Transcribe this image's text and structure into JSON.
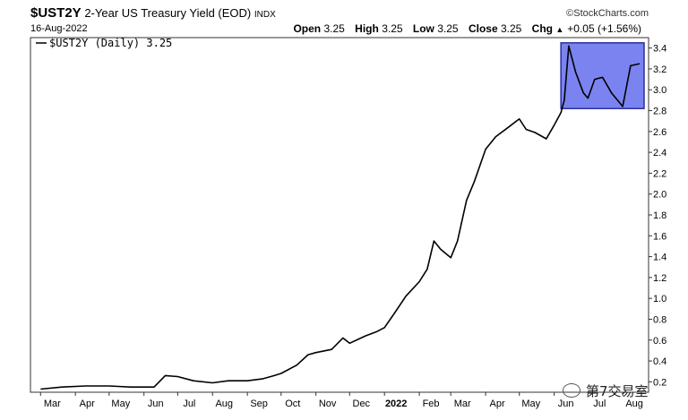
{
  "header": {
    "symbol": "$UST2Y",
    "description": "2-Year US Treasury Yield (EOD)",
    "exchange": "INDX",
    "credit": "©StockCharts.com",
    "date": "16-Aug-2022",
    "ohlc": [
      {
        "label": "Open",
        "value": "3.25"
      },
      {
        "label": "High",
        "value": "3.25"
      },
      {
        "label": "Low",
        "value": "3.25"
      },
      {
        "label": "Close",
        "value": "3.25"
      },
      {
        "label": "Chg",
        "value": "+0.05 (+1.56%)"
      }
    ],
    "up_arrow_icon": "triangle-up-icon"
  },
  "legend_label": "$UST2Y (Daily) 3.25",
  "watermark": "第7交易室",
  "colors": {
    "line": "#000000",
    "highlight_fill": "#7b83f0",
    "highlight_border": "#2a2f9e",
    "grid": "#e6e6e6"
  },
  "chart_data": {
    "type": "line",
    "series": [
      {
        "name": "$UST2Y (Daily)",
        "x": [
          "2021-03-01",
          "2021-03-20",
          "2021-04-10",
          "2021-05-01",
          "2021-05-20",
          "2021-06-10",
          "2021-06-20",
          "2021-07-01",
          "2021-07-15",
          "2021-08-01",
          "2021-08-15",
          "2021-09-01",
          "2021-09-15",
          "2021-09-25",
          "2021-10-01",
          "2021-10-15",
          "2021-10-25",
          "2021-11-01",
          "2021-11-15",
          "2021-11-25",
          "2021-12-01",
          "2021-12-15",
          "2021-12-25",
          "2022-01-01",
          "2022-01-10",
          "2022-01-20",
          "2022-02-01",
          "2022-02-08",
          "2022-02-14",
          "2022-02-20",
          "2022-03-01",
          "2022-03-07",
          "2022-03-15",
          "2022-03-22",
          "2022-04-01",
          "2022-04-10",
          "2022-04-20",
          "2022-05-01",
          "2022-05-07",
          "2022-05-15",
          "2022-05-25",
          "2022-06-01",
          "2022-06-07",
          "2022-06-10",
          "2022-06-14",
          "2022-06-20",
          "2022-06-27",
          "2022-07-01",
          "2022-07-07",
          "2022-07-14",
          "2022-07-22",
          "2022-08-01",
          "2022-08-08",
          "2022-08-16"
        ],
        "y": [
          0.13,
          0.15,
          0.16,
          0.16,
          0.15,
          0.15,
          0.26,
          0.25,
          0.21,
          0.19,
          0.21,
          0.21,
          0.23,
          0.26,
          0.28,
          0.36,
          0.46,
          0.48,
          0.51,
          0.62,
          0.57,
          0.64,
          0.68,
          0.72,
          0.86,
          1.02,
          1.16,
          1.28,
          1.55,
          1.47,
          1.39,
          1.55,
          1.94,
          2.12,
          2.43,
          2.55,
          2.63,
          2.72,
          2.62,
          2.59,
          2.53,
          2.66,
          2.78,
          2.9,
          3.42,
          3.17,
          2.97,
          2.92,
          3.1,
          3.12,
          2.97,
          2.84,
          3.23,
          3.25
        ]
      }
    ],
    "x_tick_labels": [
      "Mar",
      "Apr",
      "May",
      "Jun",
      "Jul",
      "Aug",
      "Sep",
      "Oct",
      "Nov",
      "Dec",
      "2022",
      "Feb",
      "Mar",
      "Apr",
      "May",
      "Jun",
      "Jul",
      "Aug"
    ],
    "y_ticks": [
      0.2,
      0.4,
      0.6,
      0.8,
      1.0,
      1.2,
      1.4,
      1.6,
      1.8,
      2.0,
      2.2,
      2.4,
      2.6,
      2.8,
      3.0,
      3.2,
      3.4
    ],
    "y_tick_labels": [
      "0.2",
      "0.4",
      "0.6",
      "0.8",
      "1.0",
      "1.2",
      "1.4",
      "1.6",
      "1.8",
      "2.0",
      "2.2",
      "2.4",
      "2.6",
      "2.8",
      "3.0",
      "3.2",
      "3.4"
    ],
    "ylim": [
      0.1,
      3.5
    ],
    "highlight": {
      "x_range": [
        "2022-06-07",
        "2022-08-20"
      ],
      "y_range": [
        2.82,
        3.45
      ]
    },
    "grid": false,
    "y_axis_side": "right"
  }
}
